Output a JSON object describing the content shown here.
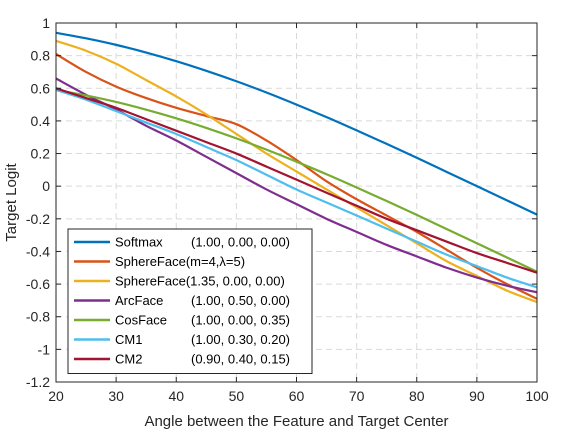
{
  "chart_data": {
    "type": "line",
    "xlabel": "Angle between the Feature and Target Center",
    "ylabel": "Target Logit",
    "xlim": [
      20,
      100
    ],
    "ylim": [
      -1.2,
      1
    ],
    "xticks": [
      20,
      30,
      40,
      50,
      60,
      70,
      80,
      90,
      100
    ],
    "yticks": [
      1,
      0.8,
      0.6,
      0.4,
      0.2,
      0,
      -0.2,
      -0.4,
      -0.6,
      -0.8,
      -1,
      -1.2
    ],
    "xtick_labels": [
      "20",
      "30",
      "40",
      "50",
      "60",
      "70",
      "80",
      "90",
      "100"
    ],
    "ytick_labels": [
      "1",
      "0.8",
      "0.6",
      "0.4",
      "0.2",
      "0",
      "-0.2",
      "-0.4",
      "-0.6",
      "-0.8",
      "-1",
      "-1.2"
    ],
    "grid": true,
    "legend_position": "bottom-left",
    "x": [
      20,
      25,
      30,
      35,
      40,
      45,
      50,
      55,
      60,
      65,
      70,
      75,
      80,
      85,
      90,
      95,
      100
    ],
    "series": [
      {
        "name": "Softmax",
        "params": "(1.00, 0.00, 0.00)",
        "color": "#0072BD",
        "values": [
          0.94,
          0.906,
          0.866,
          0.819,
          0.766,
          0.707,
          0.643,
          0.574,
          0.5,
          0.423,
          0.342,
          0.259,
          0.174,
          0.087,
          0.0,
          -0.087,
          -0.174
        ]
      },
      {
        "name": "SphereFace(m=4,λ=5)",
        "params": "",
        "color": "#D95319",
        "values": [
          0.81,
          0.7,
          0.61,
          0.54,
          0.48,
          0.43,
          0.38,
          0.28,
          0.16,
          0.03,
          -0.08,
          -0.18,
          -0.28,
          -0.39,
          -0.5,
          -0.6,
          -0.69
        ]
      },
      {
        "name": "SphereFace(1.35, 0.00, 0.00)",
        "params": "",
        "color": "#EDB120",
        "values": [
          0.89,
          0.83,
          0.75,
          0.65,
          0.55,
          0.44,
          0.32,
          0.2,
          0.09,
          -0.02,
          -0.13,
          -0.24,
          -0.35,
          -0.46,
          -0.55,
          -0.64,
          -0.71
        ]
      },
      {
        "name": "ArcFace",
        "params": "(1.00, 0.50, 0.00)",
        "color": "#7E2F8E",
        "values": [
          0.66,
          0.56,
          0.47,
          0.37,
          0.28,
          0.18,
          0.08,
          -0.02,
          -0.11,
          -0.2,
          -0.28,
          -0.36,
          -0.43,
          -0.5,
          -0.56,
          -0.61,
          -0.65
        ]
      },
      {
        "name": "CosFace",
        "params": "(1.00, 0.00, 0.35)",
        "color": "#77AC30",
        "values": [
          0.59,
          0.556,
          0.516,
          0.469,
          0.416,
          0.357,
          0.293,
          0.224,
          0.15,
          0.073,
          -0.008,
          -0.091,
          -0.176,
          -0.263,
          -0.35,
          -0.437,
          -0.524
        ]
      },
      {
        "name": "CM1",
        "params": "(1.00, 0.30, 0.20)",
        "color": "#4DBEEE",
        "values": [
          0.59,
          0.53,
          0.46,
          0.39,
          0.32,
          0.24,
          0.16,
          0.07,
          -0.02,
          -0.1,
          -0.18,
          -0.26,
          -0.34,
          -0.42,
          -0.49,
          -0.56,
          -0.62
        ]
      },
      {
        "name": "CM2",
        "params": "(0.90, 0.40, 0.15)",
        "color": "#A2142F",
        "values": [
          0.6,
          0.54,
          0.48,
          0.41,
          0.34,
          0.27,
          0.2,
          0.12,
          0.04,
          -0.04,
          -0.12,
          -0.2,
          -0.27,
          -0.34,
          -0.41,
          -0.47,
          -0.53
        ]
      }
    ]
  }
}
